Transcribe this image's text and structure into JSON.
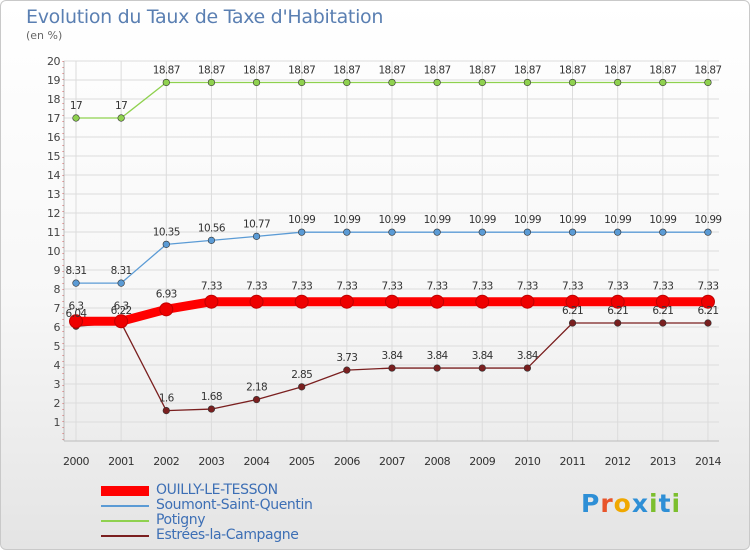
{
  "chart_data": {
    "type": "line",
    "title": "Evolution du Taux de Taxe d'Habitation",
    "ylabel": "(en %)",
    "xlabel": "",
    "ylim": [
      0,
      20
    ],
    "yticks": [
      1,
      2,
      3,
      4,
      5,
      6,
      7,
      8,
      9,
      10,
      11,
      12,
      13,
      14,
      15,
      16,
      17,
      18,
      19,
      20
    ],
    "x": [
      "2000",
      "2001",
      "2002",
      "2003",
      "2004",
      "2005",
      "2006",
      "2007",
      "2008",
      "2009",
      "2010",
      "2011",
      "2012",
      "2013",
      "2014"
    ],
    "grid": true,
    "legend_position": "bottom-left",
    "series": [
      {
        "name": "OUILLY-LE-TESSON",
        "color": "#ff0000",
        "values": [
          6.3,
          6.3,
          6.93,
          7.33,
          7.33,
          7.33,
          7.33,
          7.33,
          7.33,
          7.33,
          7.33,
          7.33,
          7.33,
          7.33,
          7.33
        ],
        "labels": [
          "6.3",
          "6.3",
          "6.93",
          "7.33",
          "7.33",
          "7.33",
          "7.33",
          "7.33",
          "7.33",
          "7.33",
          "7.33",
          "7.33",
          "7.33",
          "7.33",
          "7.33"
        ]
      },
      {
        "name": "Soumont-Saint-Quentin",
        "color": "#5b9bd5",
        "values": [
          8.31,
          8.31,
          10.35,
          10.56,
          10.77,
          10.99,
          10.99,
          10.99,
          10.99,
          10.99,
          10.99,
          10.99,
          10.99,
          10.99,
          10.99
        ],
        "labels": [
          "8.31",
          "8.31",
          "10.35",
          "10.56",
          "10.77",
          "10.99",
          "10.99",
          "10.99",
          "10.99",
          "10.99",
          "10.99",
          "10.99",
          "10.99",
          "10.99",
          "10.99"
        ]
      },
      {
        "name": "Potigny",
        "color": "#8fd14f",
        "values": [
          17,
          17,
          18.87,
          18.87,
          18.87,
          18.87,
          18.87,
          18.87,
          18.87,
          18.87,
          18.87,
          18.87,
          18.87,
          18.87,
          18.87
        ],
        "labels": [
          "17",
          "17",
          "18.87",
          "18.87",
          "18.87",
          "18.87",
          "18.87",
          "18.87",
          "18.87",
          "18.87",
          "18.87",
          "18.87",
          "18.87",
          "18.87",
          "18.87"
        ]
      },
      {
        "name": "Estrées-la-Campagne",
        "color": "#7a1f1f",
        "values": [
          6.04,
          6.22,
          1.6,
          1.68,
          2.18,
          2.85,
          3.73,
          3.84,
          3.84,
          3.84,
          3.84,
          6.21,
          6.21,
          6.21,
          6.21
        ],
        "labels": [
          "6.04",
          "6.22",
          "1.6",
          "1.68",
          "2.18",
          "2.85",
          "3.73",
          "3.84",
          "3.84",
          "3.84",
          "3.84",
          "6.21",
          "6.21",
          "6.21",
          "6.21"
        ]
      }
    ]
  },
  "logo": {
    "text": "Proxiti",
    "letter_colors": [
      "#2e8fd6",
      "#e8542a",
      "#f0a800",
      "#2e8fd6",
      "#7cbf2e",
      "#2e8fd6",
      "#7cbf2e"
    ]
  }
}
